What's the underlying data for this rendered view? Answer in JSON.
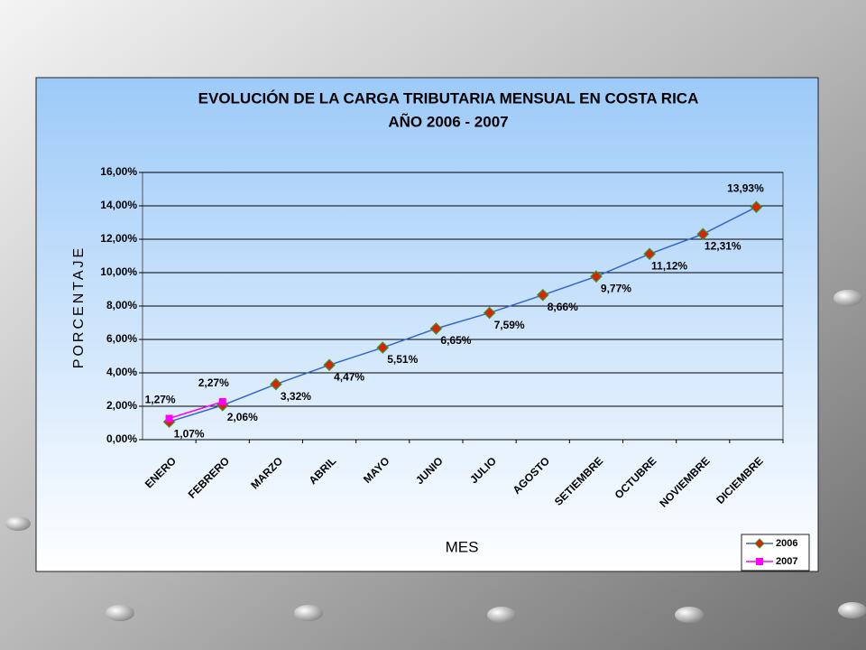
{
  "chart_data": {
    "type": "line",
    "title": "EVOLUCIÓN DE LA CARGA TRIBUTARIA MENSUAL EN COSTA RICA",
    "subtitle": "AÑO 2006 - 2007",
    "x_label": "MES",
    "y_label": "PORCENTAJE",
    "categories": [
      "ENERO",
      "FEBRERO",
      "MARZO",
      "ABRIL",
      "MAYO",
      "JUNIO",
      "JULIO",
      "AGOSTO",
      "SETIEMBRE",
      "OCTUBRE",
      "NOVIEMBRE",
      "DICIEMBRE"
    ],
    "series": [
      {
        "name": "2006",
        "color": "#3366cc",
        "marker_color": "#dd2200",
        "values": [
          1.07,
          2.06,
          3.32,
          4.47,
          5.51,
          6.65,
          7.59,
          8.66,
          9.77,
          11.12,
          12.31,
          13.93
        ],
        "value_labels": [
          "1,07%",
          "2,06%",
          "3,32%",
          "4,47%",
          "5,51%",
          "6,65%",
          "7,59%",
          "8,66%",
          "9,77%",
          "11,12%",
          "12,31%",
          "13,93%"
        ]
      },
      {
        "name": "2007",
        "color": "#ff00ff",
        "marker_color": "#ff00ff",
        "values": [
          1.27,
          2.27,
          null,
          null,
          null,
          null,
          null,
          null,
          null,
          null,
          null,
          null
        ],
        "value_labels": [
          "1,27%",
          "2,27%",
          null,
          null,
          null,
          null,
          null,
          null,
          null,
          null,
          null,
          null
        ]
      }
    ],
    "ylim": [
      0,
      16
    ],
    "yticks": [
      {
        "value": 0,
        "label": "0,00%"
      },
      {
        "value": 2,
        "label": "2,00%"
      },
      {
        "value": 4,
        "label": "4,00%"
      },
      {
        "value": 6,
        "label": "6,00%"
      },
      {
        "value": 8,
        "label": "8,00%"
      },
      {
        "value": 10,
        "label": "10,00%"
      },
      {
        "value": 12,
        "label": "12,00%"
      },
      {
        "value": 14,
        "label": "14,00%"
      },
      {
        "value": 16,
        "label": "16,00%"
      }
    ],
    "grid": true,
    "legend": "lower right"
  }
}
